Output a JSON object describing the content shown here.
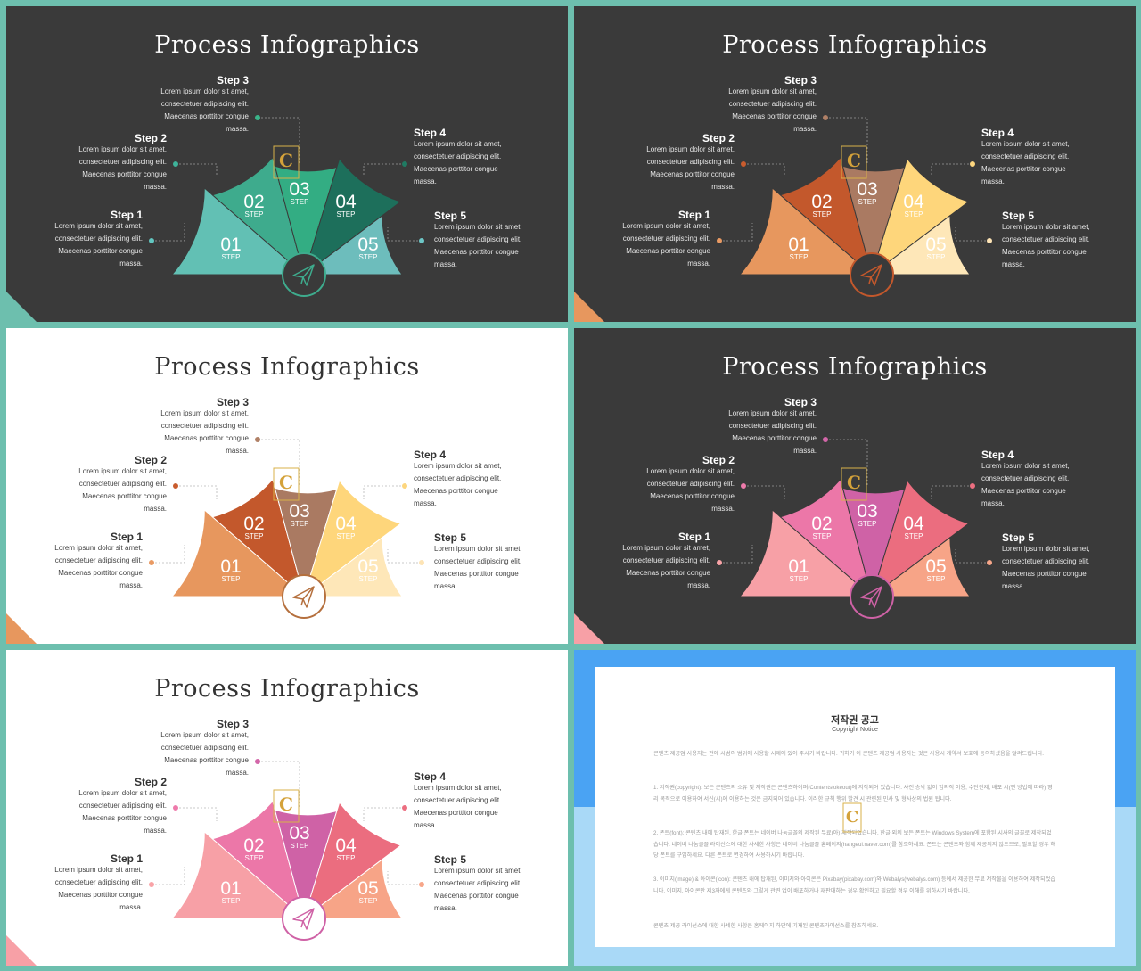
{
  "slides": [
    {
      "theme": "dark",
      "title": "Process Infographics",
      "colors": [
        "#62c0b4",
        "#3eab8d",
        "#33ad83",
        "#1d6f5b",
        "#6dbdbc"
      ],
      "dot_colors": [
        "#62c6c0",
        "#3eb39a",
        "#3ab489",
        "#1f7a62",
        "#6dc6c6"
      ],
      "ring": "#3eab8d",
      "corner": "#6dbfae"
    },
    {
      "theme": "dark",
      "title": "Process Infographics",
      "colors": [
        "#e7975e",
        "#c3582c",
        "#aa7a62",
        "#fed67b",
        "#fee7b8"
      ],
      "dot_colors": [
        "#e99a63",
        "#c95c2e",
        "#b08066",
        "#fdd67e",
        "#fde4b5"
      ],
      "ring": "#c3582c",
      "corner": "#e7975e"
    },
    {
      "theme": "light",
      "title": "Process Infographics",
      "colors": [
        "#e7975e",
        "#c3582c",
        "#aa7a62",
        "#fed67b",
        "#fee7b8"
      ],
      "dot_colors": [
        "#e99a63",
        "#c95c2e",
        "#b08066",
        "#fdd67e",
        "#fde4b5"
      ],
      "ring": "#b5703e",
      "corner": "#e7975e"
    },
    {
      "theme": "dark",
      "title": "Process Infographics",
      "colors": [
        "#f7a0a6",
        "#ec77a8",
        "#cf62a6",
        "#eb6d7f",
        "#f7a487"
      ],
      "dot_colors": [
        "#f9a3a7",
        "#ee7aab",
        "#d366a9",
        "#ec6e80",
        "#f7a689"
      ],
      "ring": "#cf62a6",
      "corner": "#f7a0a6"
    },
    {
      "theme": "light",
      "title": "Process Infographics",
      "colors": [
        "#f7a0a6",
        "#ec77a8",
        "#cf62a6",
        "#eb6d7f",
        "#f7a487"
      ],
      "dot_colors": [
        "#f9a3a7",
        "#ee7aab",
        "#d366a9",
        "#ec6e80",
        "#f7a689"
      ],
      "ring": "#cf62a6",
      "corner": "#f7a0a6"
    }
  ],
  "steps": [
    {
      "name": "Step 1",
      "num": "01",
      "sub": "STEP"
    },
    {
      "name": "Step 2",
      "num": "02",
      "sub": "STEP"
    },
    {
      "name": "Step 3",
      "num": "03",
      "sub": "STEP"
    },
    {
      "name": "Step 4",
      "num": "04",
      "sub": "STEP"
    },
    {
      "name": "Step 5",
      "num": "05",
      "sub": "STEP"
    }
  ],
  "desc": [
    "Lorem ipsum dolor sit amet,",
    "consectetuer adipiscing  elit.",
    "Maecenas porttitor congue",
    "massa."
  ],
  "icon": "paper-plane-icon",
  "notice": {
    "title": "저작권 공고",
    "subtitle": "Copyright Notice",
    "p0": "콘텐츠 제공업 사용자는 전에 시범의 범위에 사용할 시제에 있어 주시기 바랍니다. 귀하가 이 콘텐츠 제공업 사용자는 것은 사용시 계약서 보호에 동의하셨음을 알려드립니다.",
    "p1": "1. 저작권(copyright): 보든 콘텐츠의 소유 및 저작권은 콘텐츠하이퍼(Contentstokeout)에 저작되어 있습니다. 사전 승낙 없이 임의적 이용, 수단전제, 배포 시(인 방법에 따라) 영리 목적으로 이용하여 서신(시)에 이용하는 것은 금지되어 있습니다. 이러한 규칙 행위 발견 시 관련된 민사 및 형사상의 법원 됩니다.",
    "p2": "2. 폰트(font): 콘텐츠 내에 탑재된, 한글 폰트는 네이버 나눔글꼴의 제작된 무료(아) 제작되었습니다. 한글 외의 보든 폰트는 Windows System에 포함된 시사의 글꼴로 제작되었습니다. 네이버 나눔글꼴 라이선스에 대한 사세한 사항은 네이버 나눔글꼴 홈페이지(hangeul.naver.com)를 참조하세요. 폰트는 콘텐츠와 함께 제공되지 않으므로, 필요할 경우 해당 폰트를 구입하세요. 다른 폰트로 변경하여 사용하시기 바랍니다.",
    "p3": "3. 이미지(image) & 아이콘(icon): 콘텐츠 내에 탑재된, 이미지와 아이콘은 Pixabay(pixabay.com)와 Webalys(webalys.com) 등에서 제공한 무료 저작물을 이용하여 제작되었습니다. 이미지, 아이콘만 제3자에게 콘텐츠와 그렇게 관련 없이 배포하거나 재판매하는 경우 확인하고 필요할 경우 이해를 위하시기 바랍니다.",
    "p4": "콘텐츠 제공 라이선스에 대한 사세한 사항은 홈페이지 하단에 기재된 콘텐츠라이선스를 참조하세요."
  }
}
